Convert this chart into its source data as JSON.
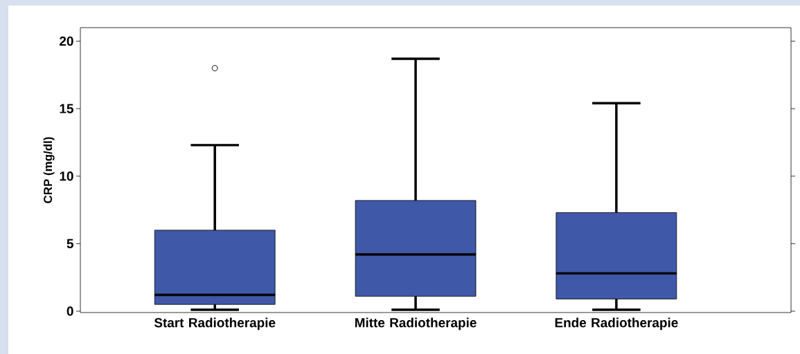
{
  "chart_data": {
    "type": "box",
    "ylabel": "CRP (mg/dl)",
    "categories": [
      "Start Radiotherapie",
      "Mitte Radiotherapie",
      "Ende Radiotherapie"
    ],
    "color": "#3f58a8",
    "ylim": [
      -0.1,
      21
    ],
    "yticks": [
      0,
      5,
      10,
      15,
      20
    ],
    "boxes": [
      {
        "low": 0.1,
        "q1": 0.5,
        "median": 1.2,
        "q3": 6.0,
        "high": 12.3,
        "outliers": [
          18
        ]
      },
      {
        "low": 0.1,
        "q1": 1.1,
        "median": 4.2,
        "q3": 8.2,
        "high": 18.7
      },
      {
        "low": 0.1,
        "q1": 0.9,
        "median": 2.8,
        "q3": 7.3,
        "high": 15.4
      }
    ]
  }
}
